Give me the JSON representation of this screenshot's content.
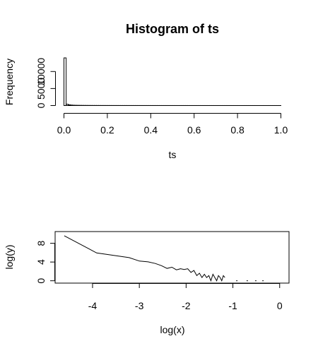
{
  "chart_data": [
    {
      "type": "bar",
      "title": "Histogram of ts",
      "xlabel": "ts",
      "ylabel": "Frequency",
      "xlim": [
        0,
        1
      ],
      "ylim": [
        0,
        14000
      ],
      "xticks": [
        0,
        0.2,
        0.4,
        0.6,
        0.8,
        1
      ],
      "xtick_labels": [
        "0.0",
        "0.2",
        "0.4",
        "0.6",
        "0.8",
        "1.0"
      ],
      "yticks": [
        0,
        5000,
        10000
      ],
      "ytick_labels": [
        "0",
        "5000",
        "10000"
      ],
      "bin_width": 0.01,
      "bin_start": 0,
      "values": [
        14000,
        380,
        210,
        140,
        100,
        80,
        65,
        55,
        48,
        42,
        38,
        34,
        31,
        28,
        26,
        24,
        22,
        21,
        20,
        19,
        18,
        17,
        16,
        15,
        15,
        14,
        14,
        13,
        13,
        12,
        12,
        12,
        11,
        11,
        11,
        10,
        10,
        10,
        10,
        9,
        9,
        9,
        9,
        9,
        8,
        8,
        8,
        8,
        8,
        8,
        7,
        7,
        7,
        7,
        7,
        7,
        7,
        6,
        6,
        6,
        6,
        6,
        6,
        6,
        6,
        6,
        5,
        5,
        5,
        5,
        5,
        5,
        5,
        5,
        5,
        5,
        5,
        5,
        4,
        4,
        4,
        4,
        4,
        4,
        4,
        4,
        4,
        4,
        4,
        4,
        4,
        4,
        4,
        4,
        4,
        4,
        4,
        4,
        4,
        4
      ],
      "grid": false,
      "legend": "none"
    },
    {
      "type": "line",
      "title": "",
      "xlabel": "log(x)",
      "ylabel": "log(y)",
      "xlim": [
        -4.8,
        0.2
      ],
      "ylim": [
        -0.5,
        10.5
      ],
      "xticks": [
        -4,
        -3,
        -2,
        -1,
        0
      ],
      "xtick_labels": [
        "-4",
        "-3",
        "-2",
        "-1",
        "0"
      ],
      "yticks": [
        0,
        4,
        8
      ],
      "ytick_labels": [
        "0",
        "4",
        "8"
      ],
      "series": [
        {
          "x": [
            -4.605,
            -3.912,
            -3.507,
            -3.219,
            -2.996,
            -2.813,
            -2.659,
            -2.526,
            -2.408,
            -2.303,
            -2.207,
            -2.12,
            -2.04,
            -1.966,
            -1.897,
            -1.833,
            -1.772,
            -1.715,
            -1.661,
            -1.609,
            -1.561,
            -1.514,
            -1.47,
            -1.427,
            -1.386,
            -1.347,
            -1.309,
            -1.273,
            -1.238,
            -1.204,
            -1.171
          ],
          "y": [
            9.6,
            5.94,
            5.35,
            4.94,
            4.2,
            4.04,
            3.69,
            3.22,
            2.64,
            2.89,
            2.33,
            2.56,
            2.4,
            2.56,
            1.79,
            2.2,
            1.1,
            1.61,
            0.69,
            1.39,
            0.69,
            1.1,
            0.0,
            1.39,
            0.69,
            0.0,
            1.1,
            0.69,
            0.0,
            1.1,
            0.69
          ]
        }
      ],
      "points": {
        "x": [
          -0.916,
          -0.693,
          -0.511,
          -0.357
        ],
        "y": [
          0,
          0,
          0,
          0
        ]
      },
      "grid": false,
      "legend": "none"
    }
  ]
}
